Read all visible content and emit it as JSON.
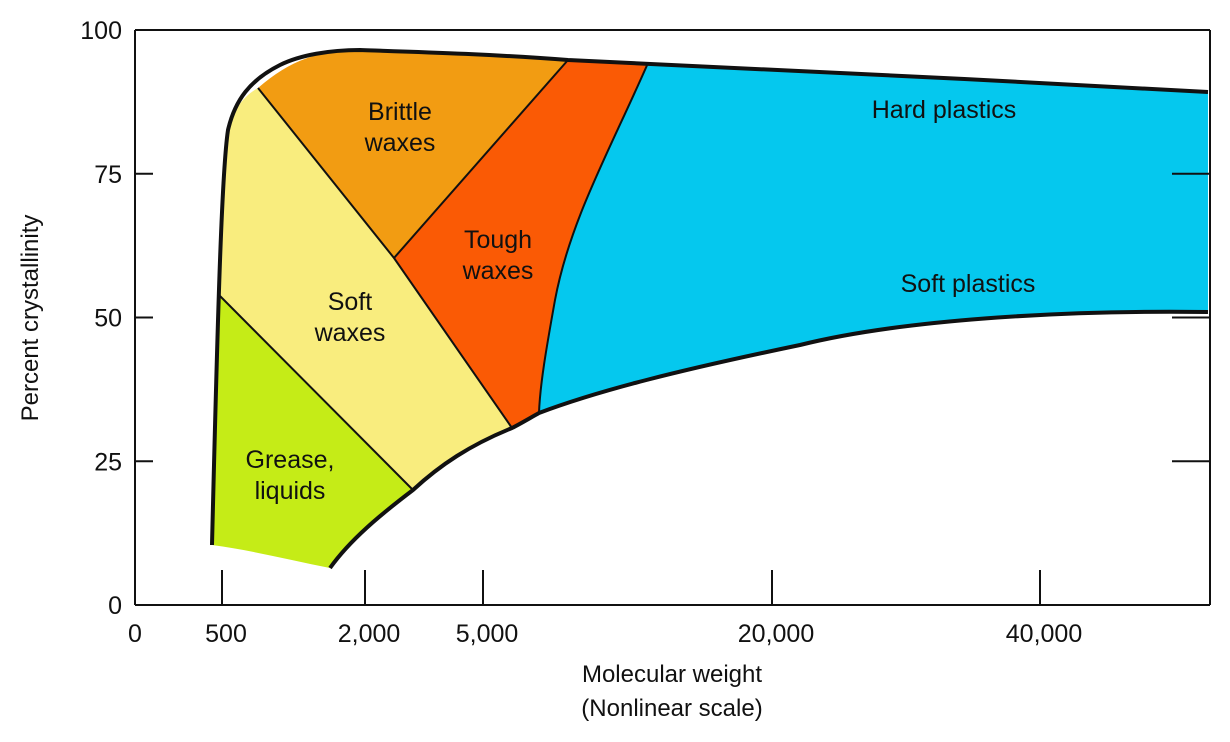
{
  "chart_data": {
    "type": "area",
    "title": "",
    "xlabel": "Molecular weight",
    "xlabel_note": "(Nonlinear scale)",
    "ylabel": "Percent crystallinity",
    "x_scale": "nonlinear",
    "x_ticks": [
      "0",
      "500",
      "2,000",
      "5,000",
      "20,000",
      "40,000"
    ],
    "y_ticks": [
      "0",
      "25",
      "50",
      "75",
      "100"
    ],
    "ylim": [
      0,
      100
    ],
    "grid": false,
    "colors": {
      "grease_liquids": "#c5ec17",
      "soft_waxes": "#f9ed7e",
      "brittle_waxes": "#f29c12",
      "tough_waxes": "#fa5a05",
      "plastics": "#05c8ee"
    },
    "regions": [
      {
        "id": "grease_liquids",
        "label_lines": [
          "Grease,",
          "liquids"
        ]
      },
      {
        "id": "soft_waxes",
        "label_lines": [
          "Soft",
          "waxes"
        ]
      },
      {
        "id": "brittle_waxes",
        "label_lines": [
          "Brittle",
          "waxes"
        ]
      },
      {
        "id": "tough_waxes",
        "label_lines": [
          "Tough",
          "waxes"
        ]
      },
      {
        "id": "hard_plastics",
        "label_lines": [
          "Hard plastics"
        ]
      },
      {
        "id": "soft_plastics",
        "label_lines": [
          "Soft plastics"
        ]
      }
    ]
  }
}
